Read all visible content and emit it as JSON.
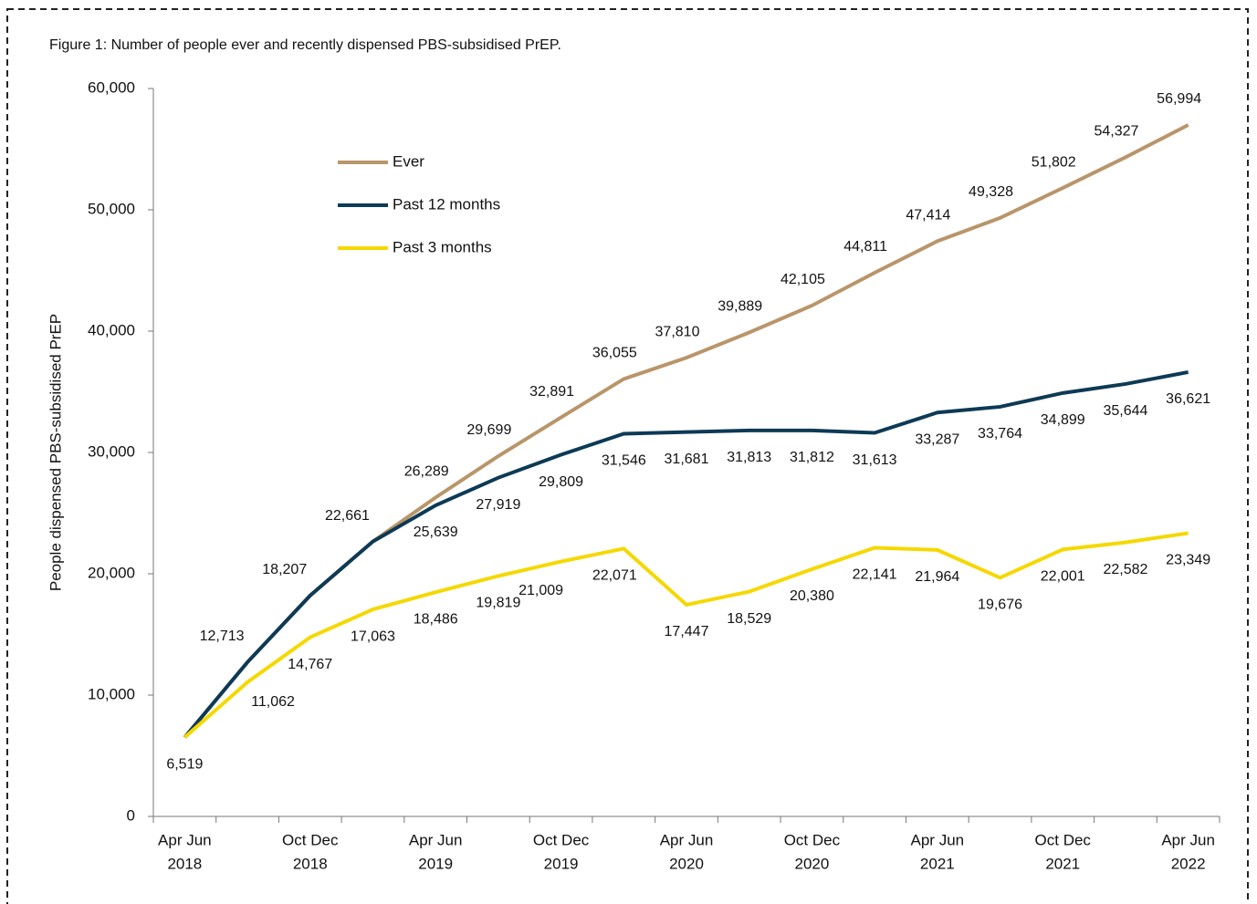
{
  "chart_data": {
    "type": "line",
    "title": "Figure 1: Number of people ever and recently dispensed PBS-subsidised PrEP.",
    "y_label": "People dispensed PBS-subsidised PrEP",
    "categories": [
      [
        "Apr Jun",
        "2018"
      ],
      null,
      [
        "Oct Dec",
        "2018"
      ],
      null,
      [
        "Apr Jun",
        "2019"
      ],
      null,
      [
        "Oct Dec",
        "2019"
      ],
      null,
      [
        "Apr Jun",
        "2020"
      ],
      null,
      [
        "Oct Dec",
        "2020"
      ],
      null,
      [
        "Apr Jun",
        "2021"
      ],
      null,
      [
        "Oct Dec",
        "2021"
      ],
      null,
      [
        "Apr Jun",
        "2022"
      ]
    ],
    "ylim": [
      0,
      60000
    ],
    "yticks": [
      0,
      {
        "value": 10000,
        "label": "10,000"
      },
      {
        "value": 20000,
        "label": "20,000"
      },
      {
        "value": 30000,
        "label": "30,000"
      },
      {
        "value": 40000,
        "label": "40,000"
      },
      {
        "value": 50000,
        "label": "50,000"
      },
      {
        "value": 60000,
        "label": "60,000"
      }
    ],
    "legend": "upper left",
    "series": [
      {
        "name": "Ever",
        "color": "#b9956a",
        "values": [
          6519,
          12713,
          18207,
          22661,
          26289,
          29699,
          32891,
          36055,
          37810,
          39889,
          42105,
          44811,
          47414,
          49328,
          51802,
          54327,
          56994
        ],
        "value_labels": [
          null,
          null,
          null,
          null,
          "26,289",
          "29,699",
          "32,891",
          "36,055",
          "37,810",
          "39,889",
          "42,105",
          "44,811",
          "47,414",
          "49,328",
          "51,802",
          "54,327",
          "56,994"
        ]
      },
      {
        "name": "Past 12 months",
        "color": "#0d3a55",
        "values": [
          6519,
          12713,
          18207,
          22661,
          25639,
          27919,
          29809,
          31546,
          31681,
          31813,
          31812,
          31613,
          33287,
          33764,
          34899,
          35644,
          36621
        ],
        "value_labels": [
          "6,519",
          "12,713",
          "18,207",
          "22,661",
          "25,639",
          "27,919",
          "29,809",
          "31,546",
          "31,681",
          "31,813",
          "31,812",
          "31,613",
          "33,287",
          "33,764",
          "34,899",
          "35,644",
          "36,621"
        ]
      },
      {
        "name": "Past 3 months",
        "color": "#f5d800",
        "values": [
          6519,
          11062,
          14767,
          17063,
          18486,
          19819,
          21009,
          22071,
          17447,
          18529,
          20380,
          22141,
          21964,
          19676,
          22001,
          22582,
          23349
        ],
        "value_labels": [
          null,
          "11,062",
          "14,767",
          "17,063",
          "18,486",
          "19,819",
          "21,009",
          "22,071",
          "17,447",
          "18,529",
          "20,380",
          "22,141",
          "21,964",
          "19,676",
          "22,001",
          "22,582",
          "23,349"
        ]
      }
    ]
  }
}
